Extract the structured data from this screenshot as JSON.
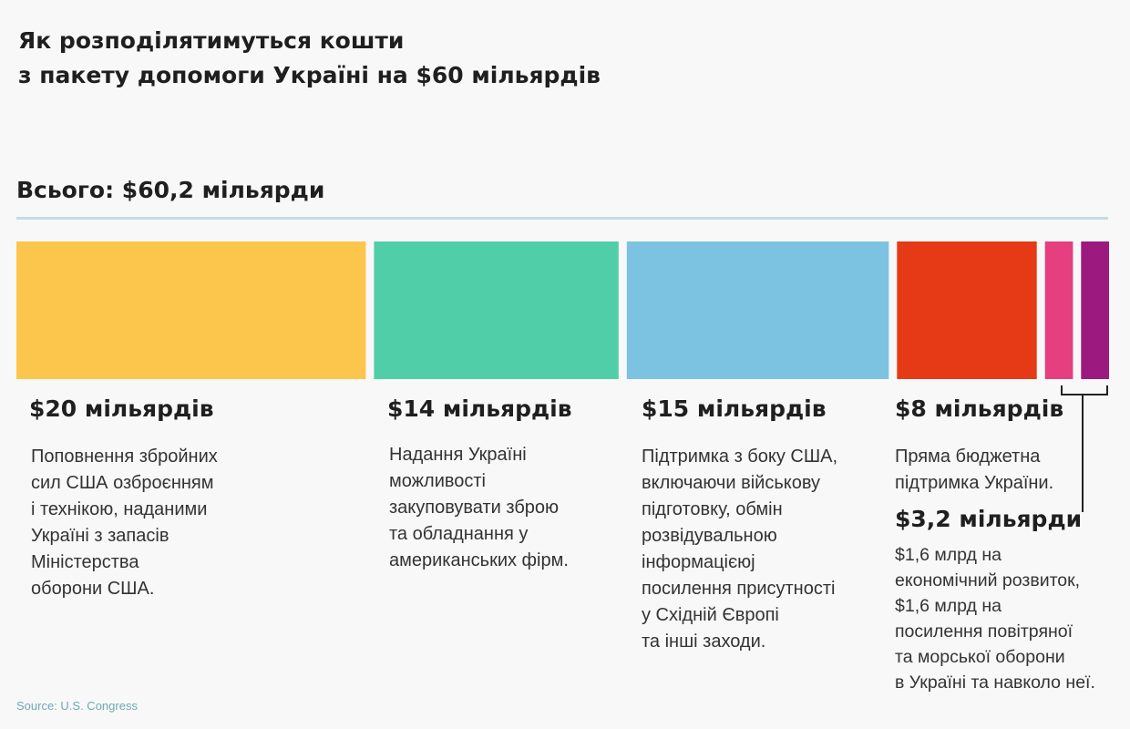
{
  "title_lines": [
    "Як розподілятимуться кошти",
    "з пакету допомоги Україні на $60 мільярдів"
  ],
  "total_label": "Всього: $60,2 мільярди",
  "source": "Source: U.S. Congress",
  "chart_data": {
    "type": "bar",
    "title": "Як розподілятимуться кошти з пакету допомоги Україні на $60 мільярдів",
    "total": 60.2,
    "unit": "billion USD",
    "categories": [
      "Поповнення збройних сил США озброєнням і технікою, наданими Україні з запасів Міністерства оборони США.",
      "Надання Україні можливості закуповувати зброю та обладнання у американських фірм.",
      "Підтримка з боку США, включаючи військову підготовку, обмін розвідувальною інформацією посилення присутності у Східній Європі та інші заходи.",
      "Пряма бюджетна підтримка України.",
      "$1,6 млрд на економічний розвиток",
      "$1,6 млрд на посилення повітряної та морської оборони в Україні та навколо неї."
    ],
    "values": [
      20,
      14,
      15,
      8,
      1.6,
      1.6
    ],
    "colors": [
      "#fcc54b",
      "#50cea8",
      "#7cc3e1",
      "#e63a17",
      "#e53f7f",
      "#9c1a80"
    ],
    "amount_labels": [
      "$20 мільярдів",
      "$14 мільярдів",
      "$15 мільярдів",
      "$8 мільярдів",
      "$3,2 мільярди"
    ]
  },
  "descriptions": [
    [
      "Поповнення збройних",
      "сил США озброєнням",
      "і технікою, наданими",
      "Україні з запасів",
      "Міністерства",
      "оборони США."
    ],
    [
      "Надання Україні",
      "можливості",
      "закуповувати зброю",
      "та обладнання у",
      "американських фірм."
    ],
    [
      "Підтримка з боку США,",
      "включаючи військову",
      "підготовку, обмін",
      "розвідувальною",
      "інформацієюј",
      "посилення присутності",
      "у Східній Європі",
      "та інші заходи."
    ],
    [
      "Пряма бюджетна",
      "підтримка України."
    ],
    [
      "$1,6 млрд на",
      "економічний розвиток,",
      "$1,6 млрд  на",
      "посилення повітряної",
      "та морської оборони",
      "в Україні та навколо неї."
    ]
  ]
}
